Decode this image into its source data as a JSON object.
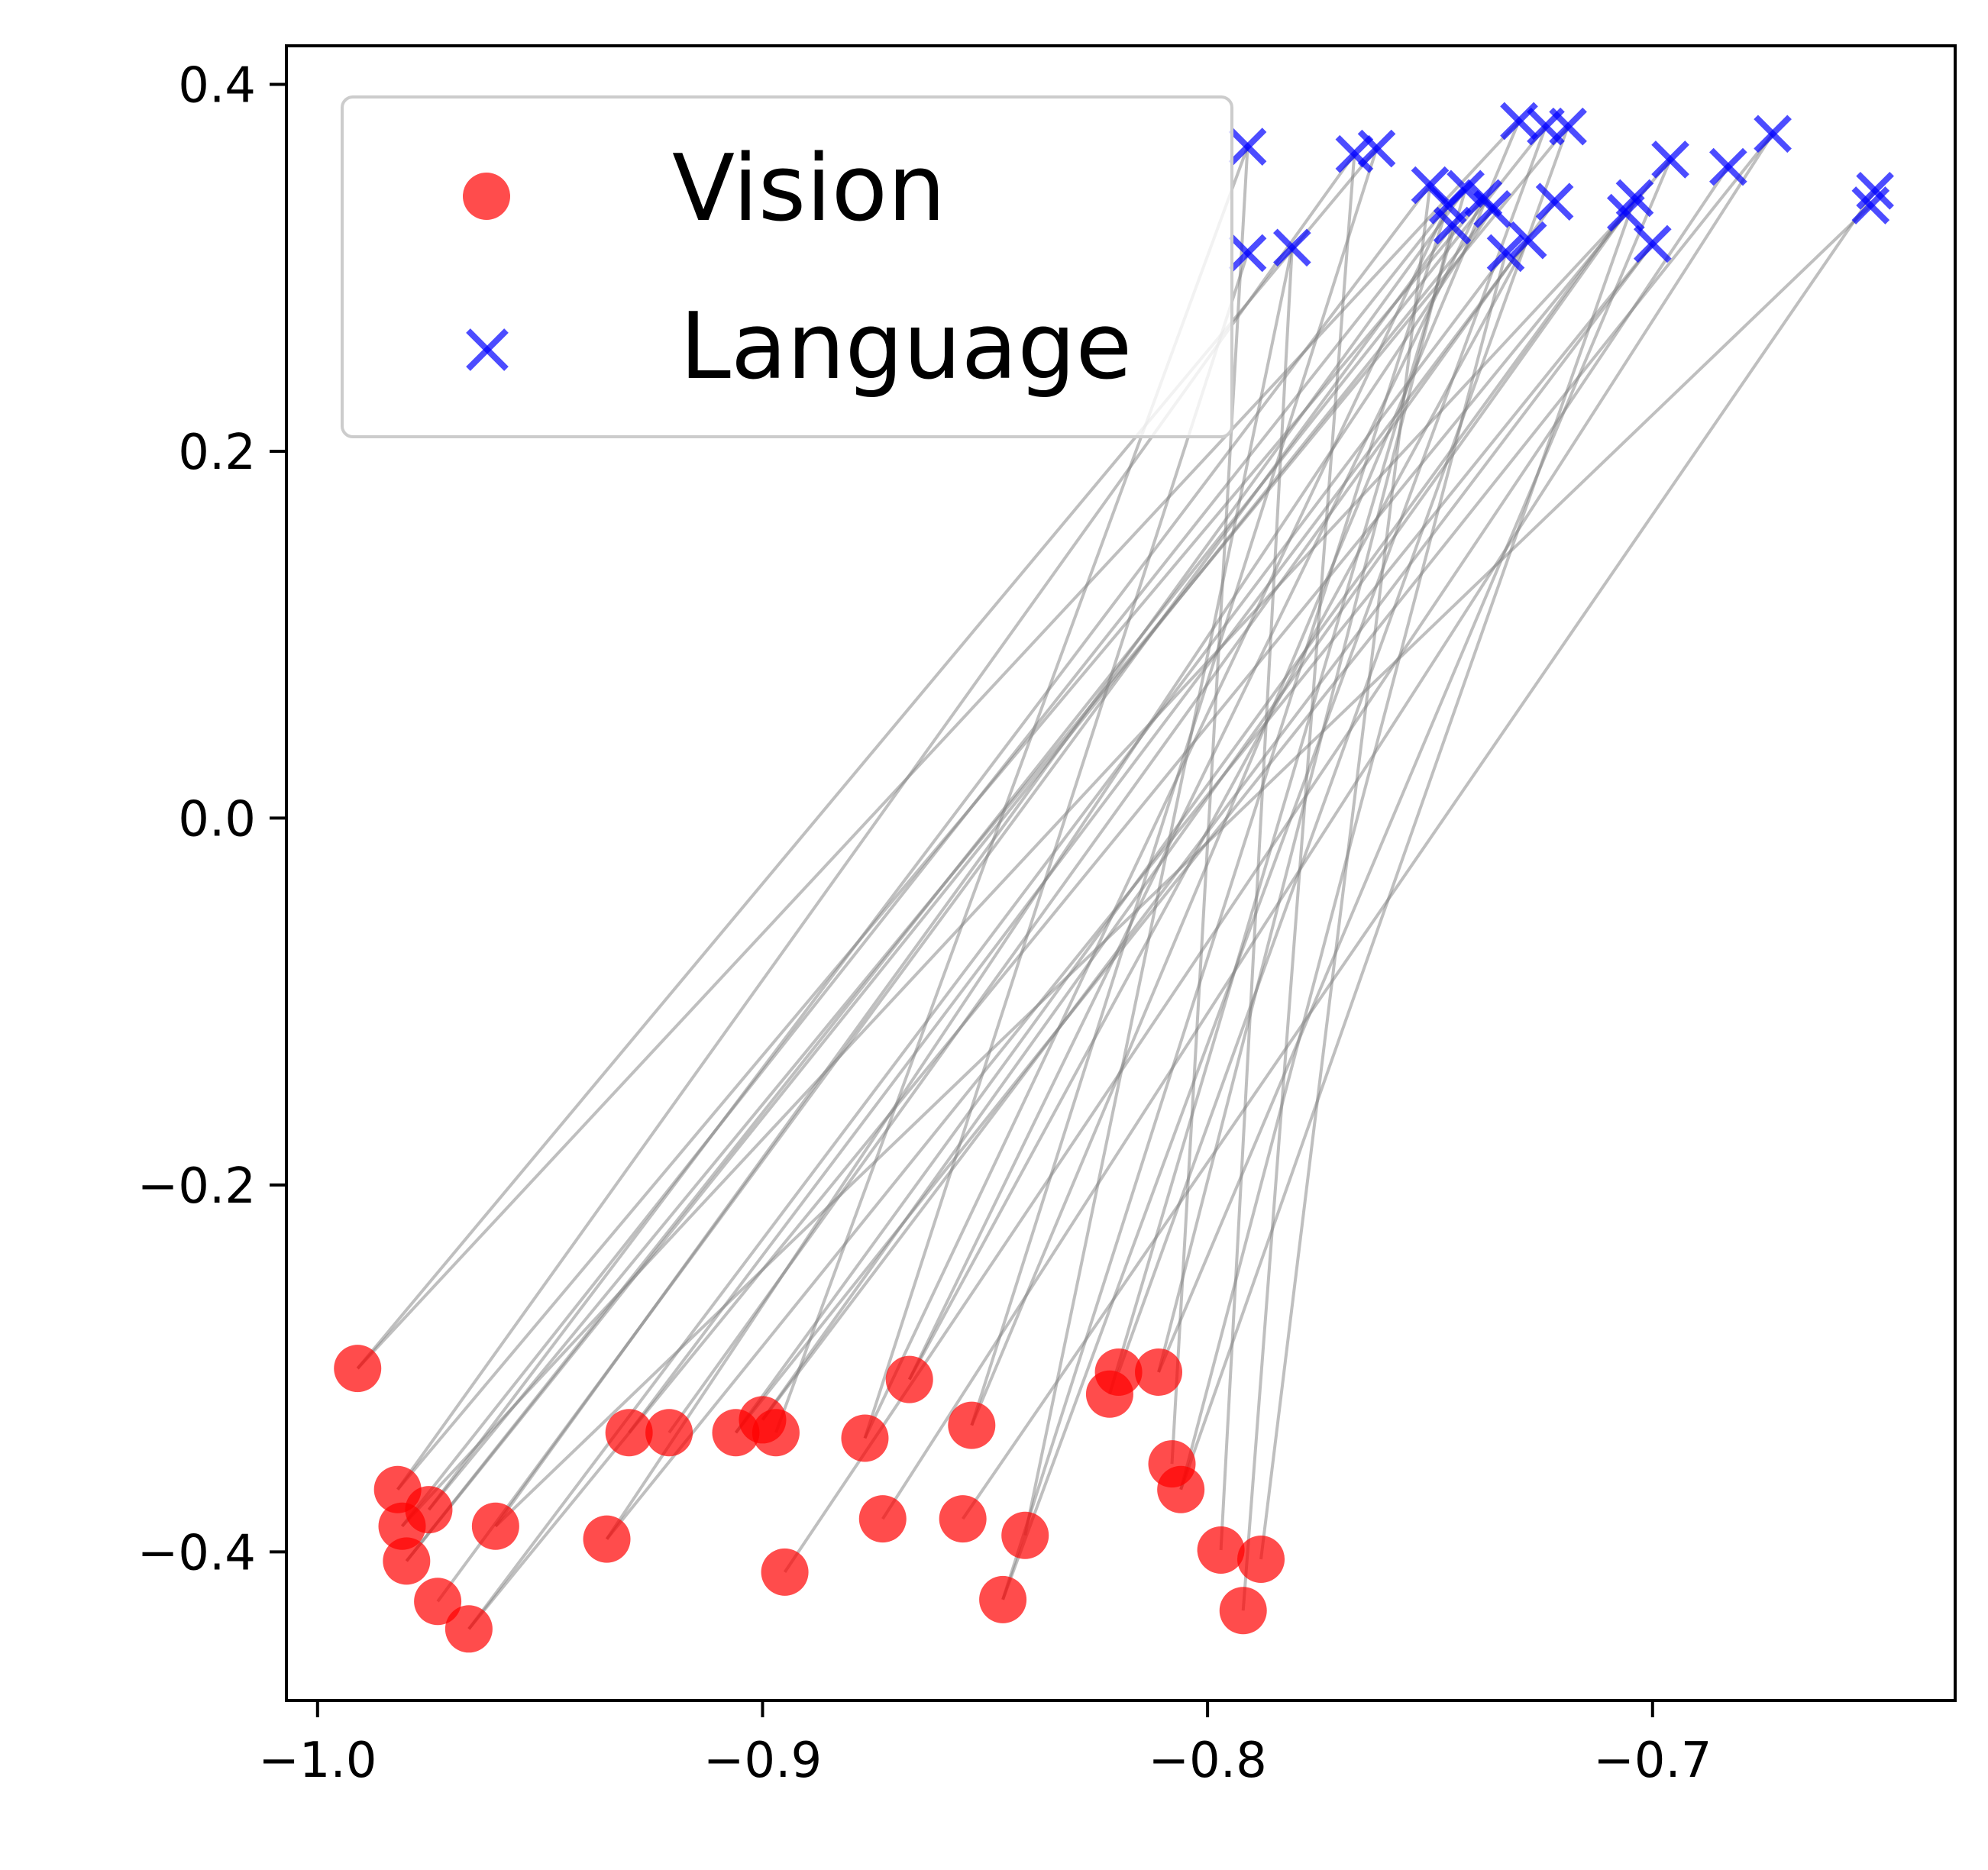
{
  "chart_data": {
    "type": "scatter",
    "title": "",
    "xlabel": "",
    "ylabel": "",
    "xlim": [
      -1.007,
      -0.632
    ],
    "ylim": [
      -0.481,
      0.421
    ],
    "xticks": [
      -1.0,
      -0.9,
      -0.8,
      -0.7
    ],
    "xtick_labels": [
      "−1.0",
      "−0.9",
      "−0.8",
      "−0.7"
    ],
    "yticks": [
      0.4,
      0.2,
      0.0,
      -0.2,
      -0.4
    ],
    "ytick_labels": [
      "0.4",
      "0.2",
      "0.0",
      "−0.2",
      "−0.4"
    ],
    "grid": false,
    "legend_position": "top-left",
    "colors": {
      "vision": "#ff0000",
      "language": "#0000ff",
      "connector": "#808080"
    },
    "series": [
      {
        "name": "Vision",
        "marker": "circle",
        "points": [
          [
            -0.991,
            -0.3
          ],
          [
            -0.982,
            -0.366
          ],
          [
            -0.981,
            -0.386
          ],
          [
            -0.98,
            -0.405
          ],
          [
            -0.975,
            -0.377
          ],
          [
            -0.973,
            -0.427
          ],
          [
            -0.966,
            -0.442
          ],
          [
            -0.96,
            -0.386
          ],
          [
            -0.935,
            -0.393
          ],
          [
            -0.93,
            -0.335
          ],
          [
            -0.921,
            -0.335
          ],
          [
            -0.906,
            -0.335
          ],
          [
            -0.9,
            -0.328
          ],
          [
            -0.897,
            -0.335
          ],
          [
            -0.895,
            -0.411
          ],
          [
            -0.877,
            -0.338
          ],
          [
            -0.873,
            -0.382
          ],
          [
            -0.867,
            -0.306
          ],
          [
            -0.855,
            -0.382
          ],
          [
            -0.853,
            -0.331
          ],
          [
            -0.846,
            -0.426
          ],
          [
            -0.841,
            -0.391
          ],
          [
            -0.822,
            -0.314
          ],
          [
            -0.82,
            -0.302
          ],
          [
            -0.811,
            -0.302
          ],
          [
            -0.808,
            -0.352
          ],
          [
            -0.806,
            -0.366
          ],
          [
            -0.797,
            -0.399
          ],
          [
            -0.792,
            -0.432
          ],
          [
            -0.788,
            -0.404
          ]
        ]
      },
      {
        "name": "Language",
        "marker": "x",
        "points": [
          [
            -0.791,
            0.366
          ],
          [
            -0.791,
            0.308
          ],
          [
            -0.781,
            0.311
          ],
          [
            -0.767,
            0.362
          ],
          [
            -0.762,
            0.365
          ],
          [
            -0.75,
            0.345
          ],
          [
            -0.746,
            0.334
          ],
          [
            -0.745,
            0.323
          ],
          [
            -0.742,
            0.343
          ],
          [
            -0.738,
            0.338
          ],
          [
            -0.736,
            0.332
          ],
          [
            -0.733,
            0.308
          ],
          [
            -0.73,
            0.38
          ],
          [
            -0.728,
            0.315
          ],
          [
            -0.724,
            0.377
          ],
          [
            -0.722,
            0.336
          ],
          [
            -0.719,
            0.377
          ],
          [
            -0.706,
            0.33
          ],
          [
            -0.704,
            0.338
          ],
          [
            -0.7,
            0.313
          ],
          [
            -0.696,
            0.359
          ],
          [
            -0.683,
            0.355
          ],
          [
            -0.673,
            0.373
          ],
          [
            -0.651,
            0.334
          ],
          [
            -0.65,
            0.342
          ]
        ]
      }
    ],
    "connections": [
      [
        0,
        4
      ],
      [
        0,
        12
      ],
      [
        1,
        3
      ],
      [
        1,
        9
      ],
      [
        2,
        6
      ],
      [
        2,
        17
      ],
      [
        3,
        14
      ],
      [
        4,
        5
      ],
      [
        4,
        16
      ],
      [
        5,
        7
      ],
      [
        6,
        11
      ],
      [
        6,
        20
      ],
      [
        7,
        8
      ],
      [
        7,
        23
      ],
      [
        8,
        10
      ],
      [
        9,
        13
      ],
      [
        10,
        15
      ],
      [
        11,
        18
      ],
      [
        12,
        19
      ],
      [
        13,
        0
      ],
      [
        14,
        21
      ],
      [
        15,
        1
      ],
      [
        16,
        22
      ],
      [
        17,
        9
      ],
      [
        18,
        24
      ],
      [
        19,
        12
      ],
      [
        20,
        6
      ],
      [
        21,
        2
      ],
      [
        22,
        8
      ],
      [
        23,
        16
      ],
      [
        24,
        7
      ],
      [
        25,
        0
      ],
      [
        26,
        18
      ],
      [
        27,
        2
      ],
      [
        28,
        3
      ],
      [
        29,
        5
      ],
      [
        3,
        10
      ],
      [
        8,
        19
      ],
      [
        11,
        22
      ],
      [
        15,
        6
      ],
      [
        17,
        13
      ],
      [
        20,
        14
      ],
      [
        24,
        20
      ],
      [
        26,
        11
      ],
      [
        12,
        17
      ],
      [
        19,
        4
      ]
    ]
  }
}
